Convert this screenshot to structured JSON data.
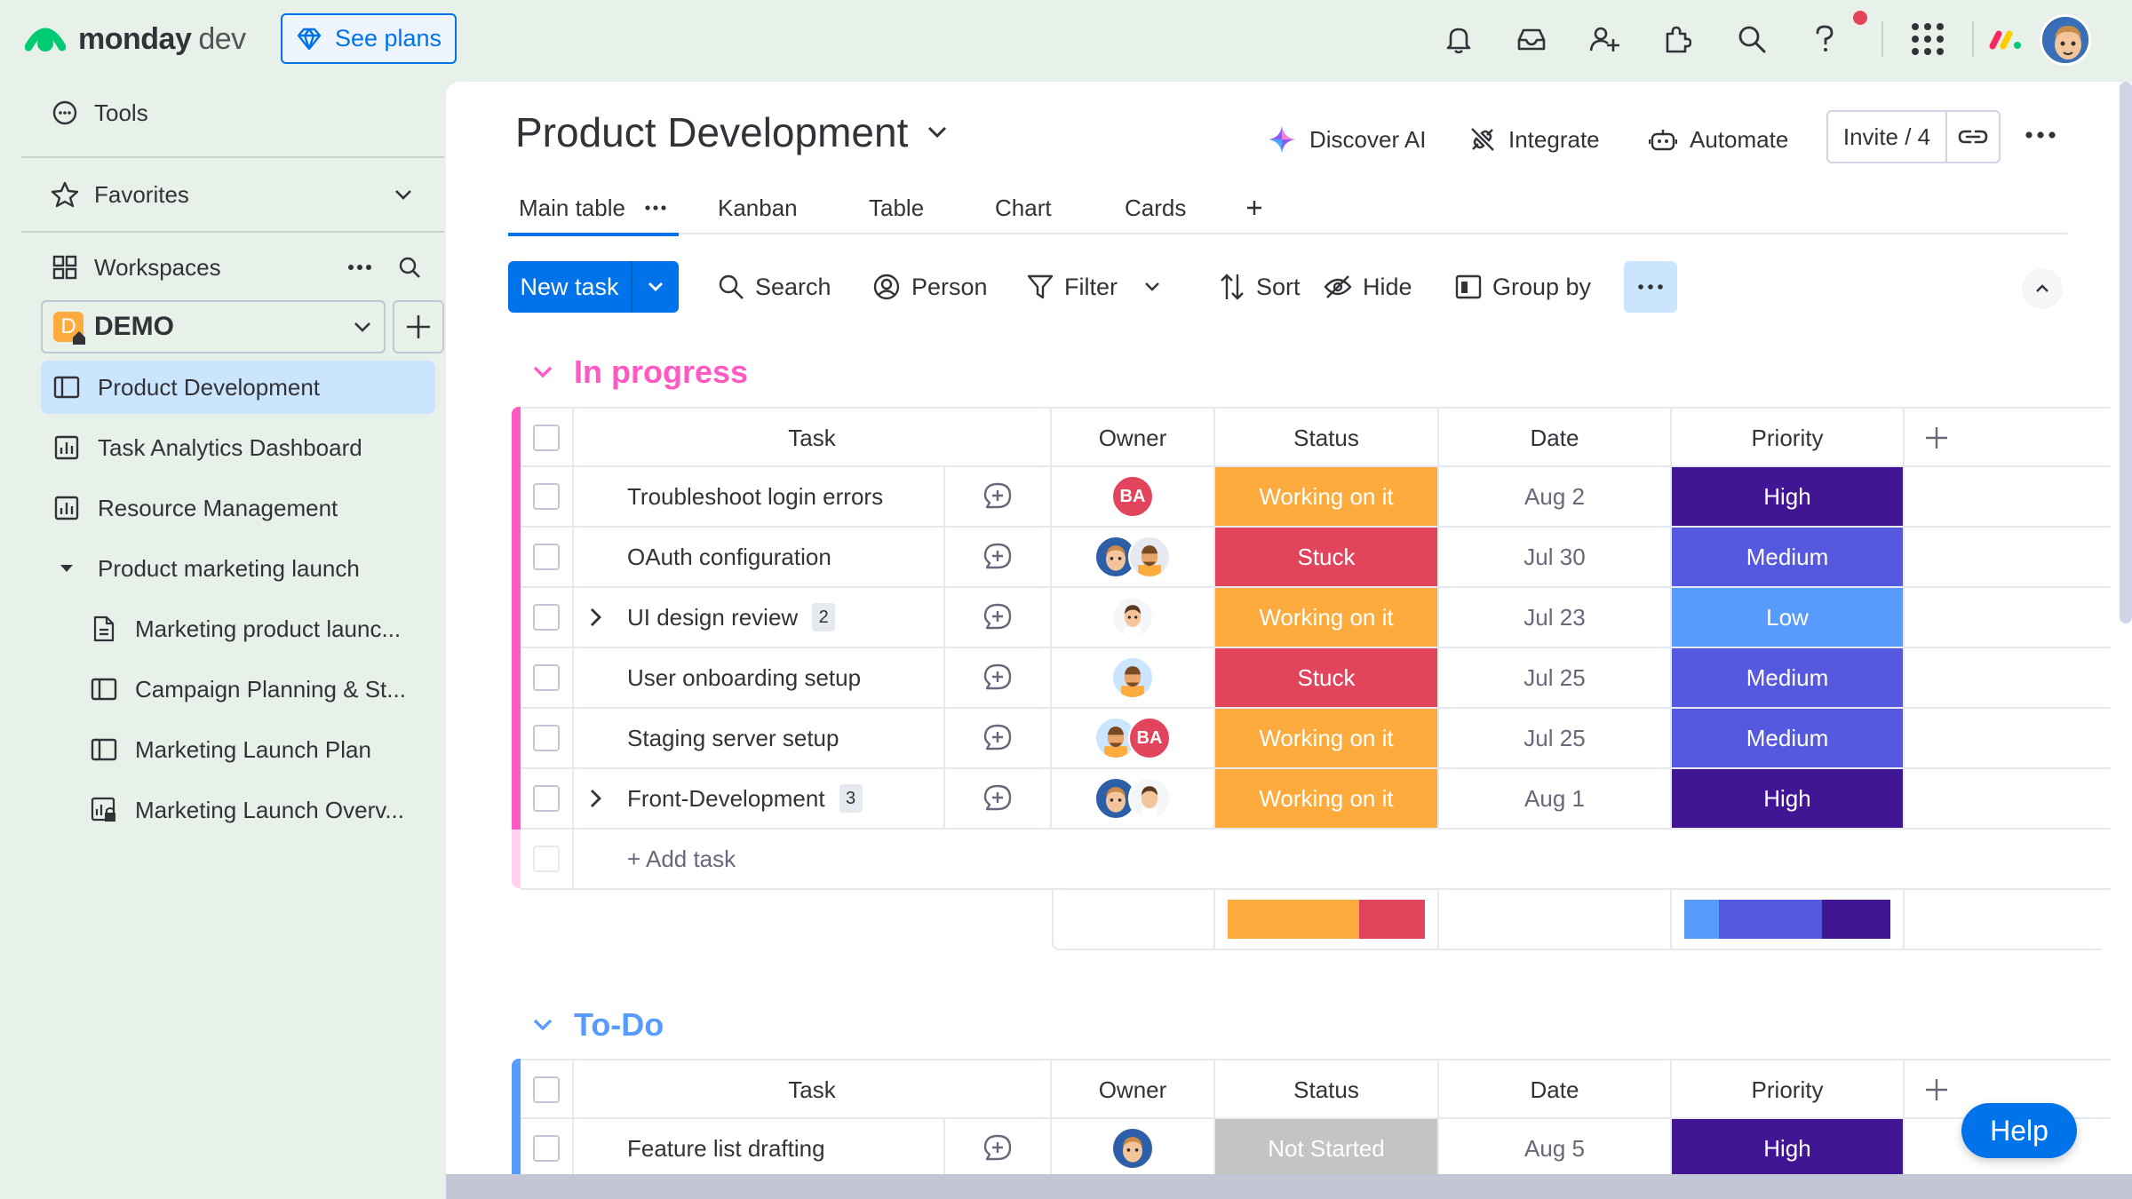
{
  "app": {
    "brand": "monday",
    "product": "dev",
    "see_plans": "See plans"
  },
  "sidebar": {
    "tools": "Tools",
    "favorites": "Favorites",
    "workspaces": "Workspaces",
    "workspace": {
      "badge": "D",
      "name": "DEMO"
    },
    "items": [
      {
        "label": "Product Development",
        "icon": "board-icon",
        "active": true
      },
      {
        "label": "Task Analytics Dashboard",
        "icon": "dashboard-icon"
      },
      {
        "label": "Resource Management",
        "icon": "dashboard-icon"
      },
      {
        "label": "Product marketing launch",
        "icon": "folder-caret-icon"
      },
      {
        "label": "Marketing product launc...",
        "icon": "doc-icon"
      },
      {
        "label": "Campaign Planning & St...",
        "icon": "board-icon"
      },
      {
        "label": "Marketing Launch Plan",
        "icon": "board-icon"
      },
      {
        "label": "Marketing Launch Overv...",
        "icon": "locked-dashboard-icon"
      }
    ]
  },
  "board": {
    "title": "Product Development",
    "discover_ai": "Discover AI",
    "integrate": "Integrate",
    "automate": "Automate",
    "invite": "Invite / 4",
    "tabs": [
      "Main table",
      "Kanban",
      "Table",
      "Chart",
      "Cards"
    ],
    "toolbar": {
      "new_task": "New task",
      "search": "Search",
      "person": "Person",
      "filter": "Filter",
      "sort": "Sort",
      "hide": "Hide",
      "group_by": "Group by"
    },
    "columns": [
      "Task",
      "Owner",
      "Status",
      "Date",
      "Priority"
    ],
    "add_task": "+ Add task"
  },
  "colors": {
    "working": "#fdab3d",
    "stuck": "#e2445c",
    "not_started": "#c4c4c4",
    "high": "#401694",
    "medium": "#5559df",
    "low": "#579bfc",
    "in_progress_group": "#ff5ac4",
    "todo_group": "#579bfc"
  },
  "groups": [
    {
      "title": "In progress",
      "rows": [
        {
          "task": "Troubleshoot login errors",
          "owners": [
            "BA"
          ],
          "status": "Working on it",
          "date": "Aug 2",
          "priority": "High"
        },
        {
          "task": "OAuth configuration",
          "owners": [
            "face-a",
            "face-b"
          ],
          "status": "Stuck",
          "date": "Jul 30",
          "priority": "Medium"
        },
        {
          "task": "UI design review",
          "subitems": "2",
          "owners": [
            "face-c"
          ],
          "status": "Working on it",
          "date": "Jul 23",
          "priority": "Low"
        },
        {
          "task": "User onboarding setup",
          "owners": [
            "face-b"
          ],
          "status": "Stuck",
          "date": "Jul 25",
          "priority": "Medium"
        },
        {
          "task": "Staging server setup",
          "owners": [
            "face-b",
            "BA"
          ],
          "status": "Working on it",
          "date": "Jul 25",
          "priority": "Medium"
        },
        {
          "task": "Front-Development",
          "subitems": "3",
          "owners": [
            "face-a",
            "face-c"
          ],
          "status": "Working on it",
          "date": "Aug 1",
          "priority": "High"
        }
      ]
    },
    {
      "title": "To-Do",
      "rows": [
        {
          "task": "Feature list drafting",
          "owners": [
            "face-a"
          ],
          "status": "Not Started",
          "date": "Aug 5",
          "priority": "High"
        }
      ]
    }
  ],
  "help": "Help"
}
